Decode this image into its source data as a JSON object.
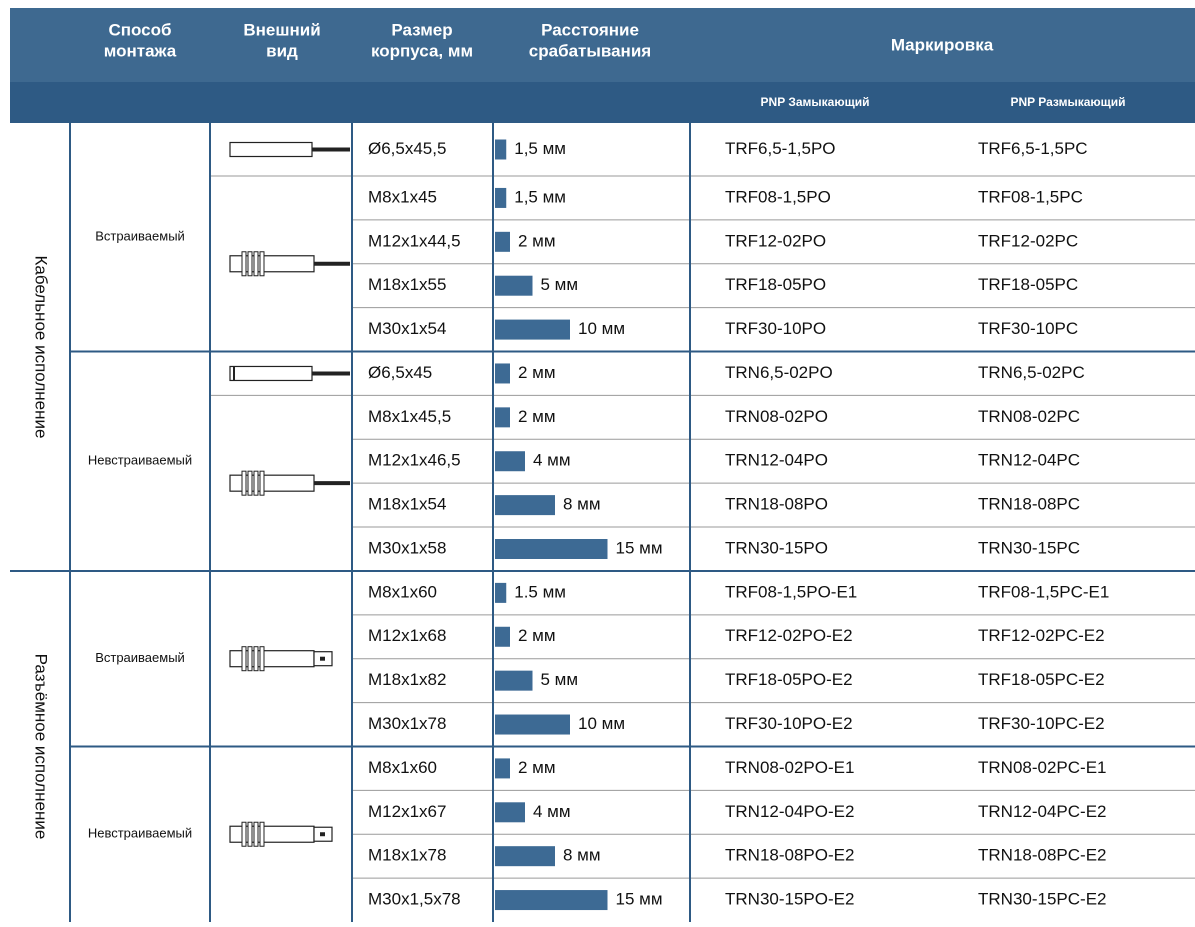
{
  "header": {
    "mount": [
      "Способ",
      "монтажа"
    ],
    "look": [
      "Внешний",
      "вид"
    ],
    "size": [
      "Размер",
      "корпуса, мм"
    ],
    "distance": [
      "Расстояние",
      "срабатывания"
    ],
    "marking": "Маркировка",
    "no": "PNP Замыкающий",
    "nc": "PNP Размыкающий"
  },
  "groups": [
    {
      "label": "Кабельное исполнение",
      "subgroups": [
        {
          "label": "Встраиваемый",
          "rows": [
            {
              "size": "Ø6,5x45,5",
              "distance": {
                "value": 1.5,
                "label": "1,5 мм"
              },
              "no": "TRF6,5-1,5PO",
              "nc": "TRF6,5-1,5PC"
            },
            {
              "size": "M8x1x45",
              "distance": {
                "value": 1.5,
                "label": "1,5 мм"
              },
              "no": "TRF08-1,5PO",
              "nc": "TRF08-1,5PC"
            },
            {
              "size": "M12x1x44,5",
              "distance": {
                "value": 2,
                "label": "2 мм"
              },
              "no": "TRF12-02PO",
              "nc": "TRF12-02PC"
            },
            {
              "size": "M18x1x55",
              "distance": {
                "value": 5,
                "label": "5 мм"
              },
              "no": "TRF18-05PO",
              "nc": "TRF18-05PC"
            },
            {
              "size": "M30x1x54",
              "distance": {
                "value": 10,
                "label": "10 мм"
              },
              "no": "TRF30-10PO",
              "nc": "TRF30-10PC"
            }
          ]
        },
        {
          "label": "Невстраиваемый",
          "rows": [
            {
              "size": "Ø6,5x45",
              "distance": {
                "value": 2,
                "label": "2 мм"
              },
              "no": "TRN6,5-02PO",
              "nc": "TRN6,5-02PC"
            },
            {
              "size": "M8x1x45,5",
              "distance": {
                "value": 2,
                "label": "2 мм"
              },
              "no": "TRN08-02PO",
              "nc": "TRN08-02PC"
            },
            {
              "size": "M12x1x46,5",
              "distance": {
                "value": 4,
                "label": "4 мм"
              },
              "no": "TRN12-04PO",
              "nc": "TRN12-04PC"
            },
            {
              "size": "M18x1x54",
              "distance": {
                "value": 8,
                "label": "8 мм"
              },
              "no": "TRN18-08PO",
              "nc": "TRN18-08PC"
            },
            {
              "size": "M30x1x58",
              "distance": {
                "value": 15,
                "label": "15 мм"
              },
              "no": "TRN30-15PO",
              "nc": "TRN30-15PC"
            }
          ]
        }
      ]
    },
    {
      "label": "Разъёмное исполнение",
      "subgroups": [
        {
          "label": "Встраиваемый",
          "rows": [
            {
              "size": "M8x1x60",
              "distance": {
                "value": 1.5,
                "label": "1.5 мм"
              },
              "no": "TRF08-1,5PO-E1",
              "nc": "TRF08-1,5PC-E1"
            },
            {
              "size": "M12x1x68",
              "distance": {
                "value": 2,
                "label": "2 мм"
              },
              "no": "TRF12-02PO-E2",
              "nc": "TRF12-02PC-E2"
            },
            {
              "size": "M18x1x82",
              "distance": {
                "value": 5,
                "label": "5 мм"
              },
              "no": "TRF18-05PO-E2",
              "nc": "TRF18-05PC-E2"
            },
            {
              "size": "M30x1x78",
              "distance": {
                "value": 10,
                "label": "10 мм"
              },
              "no": "TRF30-10PO-E2",
              "nc": "TRF30-10PC-E2"
            }
          ]
        },
        {
          "label": "Невстраиваемый",
          "rows": [
            {
              "size": "M8x1x60",
              "distance": {
                "value": 2,
                "label": "2 мм"
              },
              "no": "TRN08-02PO-E1",
              "nc": "TRN08-02PC-E1"
            },
            {
              "size": "M12x1x67",
              "distance": {
                "value": 4,
                "label": "4 мм"
              },
              "no": "TRN12-04PO-E2",
              "nc": "TRN12-04PC-E2"
            },
            {
              "size": "M18x1x78",
              "distance": {
                "value": 8,
                "label": "8 мм"
              },
              "no": "TRN18-08PO-E2",
              "nc": "TRN18-08PC-E2"
            },
            {
              "size": "M30x1,5x78",
              "distance": {
                "value": 15,
                "label": "15 мм"
              },
              "no": "TRN30-15PO-E2",
              "nc": "TRN30-15PC-E2"
            }
          ]
        }
      ]
    }
  ]
}
